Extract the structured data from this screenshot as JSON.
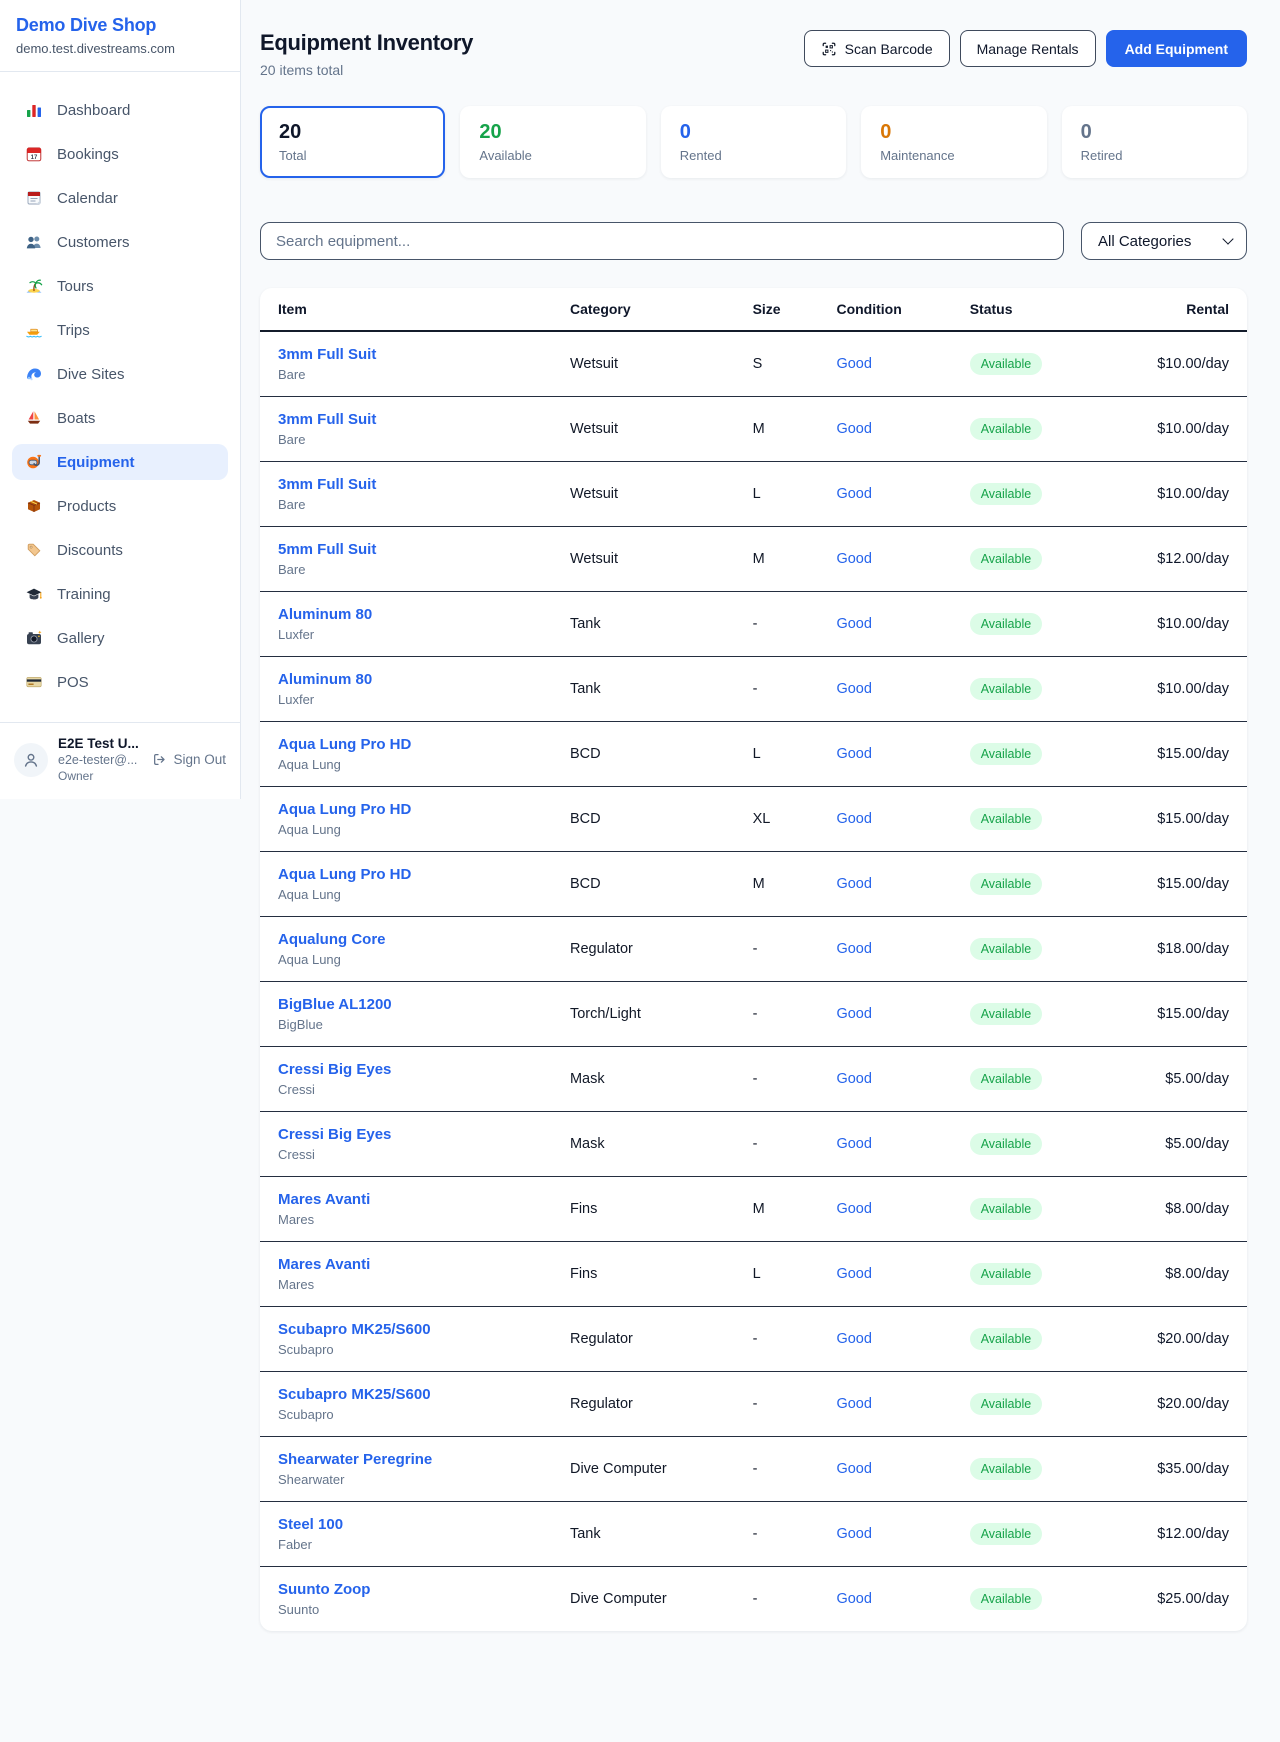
{
  "brand": {
    "name": "Demo Dive Shop",
    "domain": "demo.test.divestreams.com"
  },
  "sidebar": {
    "items": [
      {
        "label": "Dashboard",
        "icon": "bar-chart"
      },
      {
        "label": "Bookings",
        "icon": "calendar-date"
      },
      {
        "label": "Calendar",
        "icon": "calendar-pad"
      },
      {
        "label": "Customers",
        "icon": "users"
      },
      {
        "label": "Tours",
        "icon": "island"
      },
      {
        "label": "Trips",
        "icon": "motorboat"
      },
      {
        "label": "Dive Sites",
        "icon": "wave"
      },
      {
        "label": "Boats",
        "icon": "sailboat"
      },
      {
        "label": "Equipment",
        "icon": "dive-mask",
        "active": true
      },
      {
        "label": "Products",
        "icon": "package"
      },
      {
        "label": "Discounts",
        "icon": "tag"
      },
      {
        "label": "Training",
        "icon": "grad-cap"
      },
      {
        "label": "Gallery",
        "icon": "camera"
      },
      {
        "label": "POS",
        "icon": "credit-card"
      }
    ],
    "user": {
      "name": "E2E Test U...",
      "email": "e2e-tester@...",
      "role": "Owner",
      "signout_label": "Sign Out"
    }
  },
  "header": {
    "title": "Equipment Inventory",
    "subtitle": "20 items total",
    "scan_label": "Scan Barcode",
    "manage_label": "Manage Rentals",
    "add_label": "Add Equipment"
  },
  "stats": [
    {
      "value": "20",
      "label": "Total",
      "color": "#0f172a",
      "active": true
    },
    {
      "value": "20",
      "label": "Available",
      "color": "#16a34a"
    },
    {
      "value": "0",
      "label": "Rented",
      "color": "#2563eb"
    },
    {
      "value": "0",
      "label": "Maintenance",
      "color": "#d97706"
    },
    {
      "value": "0",
      "label": "Retired",
      "color": "#64748b"
    }
  ],
  "filters": {
    "search_placeholder": "Search equipment...",
    "category_selected": "All Categories"
  },
  "table": {
    "columns": [
      "Item",
      "Category",
      "Size",
      "Condition",
      "Status",
      "Rental"
    ],
    "rows": [
      {
        "name": "3mm Full Suit",
        "brand": "Bare",
        "category": "Wetsuit",
        "size": "S",
        "condition": "Good",
        "status": "Available",
        "rental": "$10.00/day"
      },
      {
        "name": "3mm Full Suit",
        "brand": "Bare",
        "category": "Wetsuit",
        "size": "M",
        "condition": "Good",
        "status": "Available",
        "rental": "$10.00/day"
      },
      {
        "name": "3mm Full Suit",
        "brand": "Bare",
        "category": "Wetsuit",
        "size": "L",
        "condition": "Good",
        "status": "Available",
        "rental": "$10.00/day"
      },
      {
        "name": "5mm Full Suit",
        "brand": "Bare",
        "category": "Wetsuit",
        "size": "M",
        "condition": "Good",
        "status": "Available",
        "rental": "$12.00/day"
      },
      {
        "name": "Aluminum 80",
        "brand": "Luxfer",
        "category": "Tank",
        "size": "-",
        "condition": "Good",
        "status": "Available",
        "rental": "$10.00/day"
      },
      {
        "name": "Aluminum 80",
        "brand": "Luxfer",
        "category": "Tank",
        "size": "-",
        "condition": "Good",
        "status": "Available",
        "rental": "$10.00/day"
      },
      {
        "name": "Aqua Lung Pro HD",
        "brand": "Aqua Lung",
        "category": "BCD",
        "size": "L",
        "condition": "Good",
        "status": "Available",
        "rental": "$15.00/day"
      },
      {
        "name": "Aqua Lung Pro HD",
        "brand": "Aqua Lung",
        "category": "BCD",
        "size": "XL",
        "condition": "Good",
        "status": "Available",
        "rental": "$15.00/day"
      },
      {
        "name": "Aqua Lung Pro HD",
        "brand": "Aqua Lung",
        "category": "BCD",
        "size": "M",
        "condition": "Good",
        "status": "Available",
        "rental": "$15.00/day"
      },
      {
        "name": "Aqualung Core",
        "brand": "Aqua Lung",
        "category": "Regulator",
        "size": "-",
        "condition": "Good",
        "status": "Available",
        "rental": "$18.00/day"
      },
      {
        "name": "BigBlue AL1200",
        "brand": "BigBlue",
        "category": "Torch/Light",
        "size": "-",
        "condition": "Good",
        "status": "Available",
        "rental": "$15.00/day"
      },
      {
        "name": "Cressi Big Eyes",
        "brand": "Cressi",
        "category": "Mask",
        "size": "-",
        "condition": "Good",
        "status": "Available",
        "rental": "$5.00/day"
      },
      {
        "name": "Cressi Big Eyes",
        "brand": "Cressi",
        "category": "Mask",
        "size": "-",
        "condition": "Good",
        "status": "Available",
        "rental": "$5.00/day"
      },
      {
        "name": "Mares Avanti",
        "brand": "Mares",
        "category": "Fins",
        "size": "M",
        "condition": "Good",
        "status": "Available",
        "rental": "$8.00/day"
      },
      {
        "name": "Mares Avanti",
        "brand": "Mares",
        "category": "Fins",
        "size": "L",
        "condition": "Good",
        "status": "Available",
        "rental": "$8.00/day"
      },
      {
        "name": "Scubapro MK25/S600",
        "brand": "Scubapro",
        "category": "Regulator",
        "size": "-",
        "condition": "Good",
        "status": "Available",
        "rental": "$20.00/day"
      },
      {
        "name": "Scubapro MK25/S600",
        "brand": "Scubapro",
        "category": "Regulator",
        "size": "-",
        "condition": "Good",
        "status": "Available",
        "rental": "$20.00/day"
      },
      {
        "name": "Shearwater Peregrine",
        "brand": "Shearwater",
        "category": "Dive Computer",
        "size": "-",
        "condition": "Good",
        "status": "Available",
        "rental": "$35.00/day"
      },
      {
        "name": "Steel 100",
        "brand": "Faber",
        "category": "Tank",
        "size": "-",
        "condition": "Good",
        "status": "Available",
        "rental": "$12.00/day"
      },
      {
        "name": "Suunto Zoop",
        "brand": "Suunto",
        "category": "Dive Computer",
        "size": "-",
        "condition": "Good",
        "status": "Available",
        "rental": "$25.00/day"
      }
    ]
  },
  "colors": {
    "accent": "#2563eb",
    "available_text": "#16a34a",
    "available_bg": "#dcfce7",
    "maintenance": "#d97706"
  }
}
